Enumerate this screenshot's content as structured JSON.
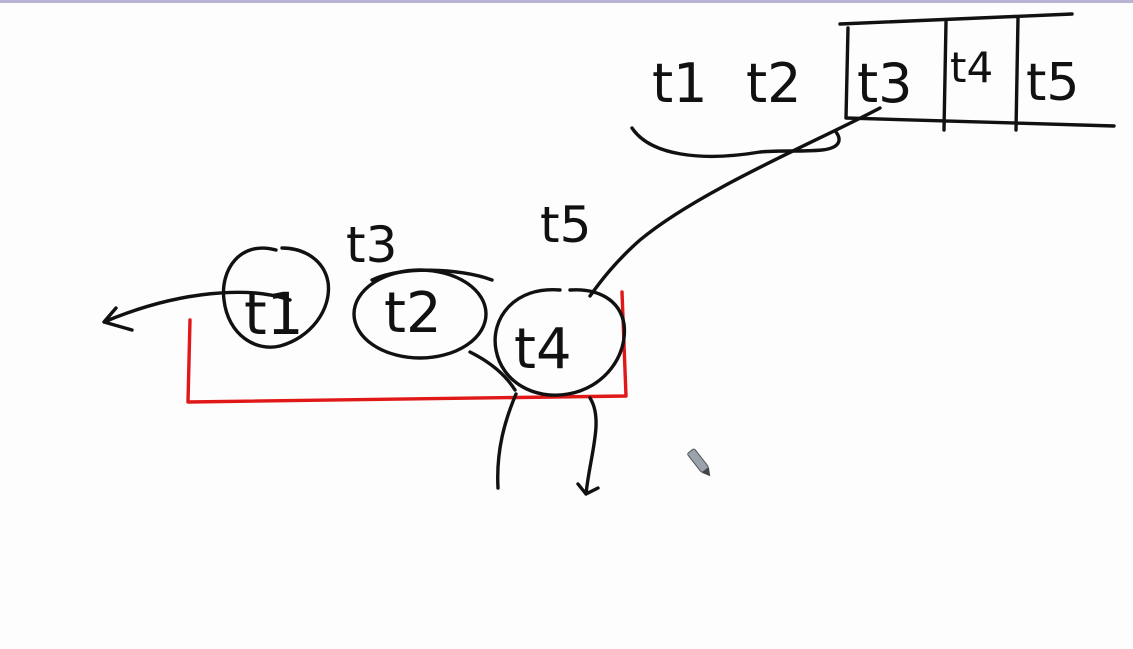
{
  "queue": {
    "items": [
      "t1",
      "t2",
      "t3",
      "t4",
      "t5"
    ]
  },
  "nodes": {
    "t1": "t1",
    "t2": "t2",
    "t4": "t4"
  },
  "annotations": {
    "above_t2": "t3",
    "above_t4": "t5"
  },
  "colors": {
    "ink": "#111111",
    "highlight_box": "#e01818",
    "top_rule": "#b9b3d6"
  },
  "cursor": "pen-icon"
}
